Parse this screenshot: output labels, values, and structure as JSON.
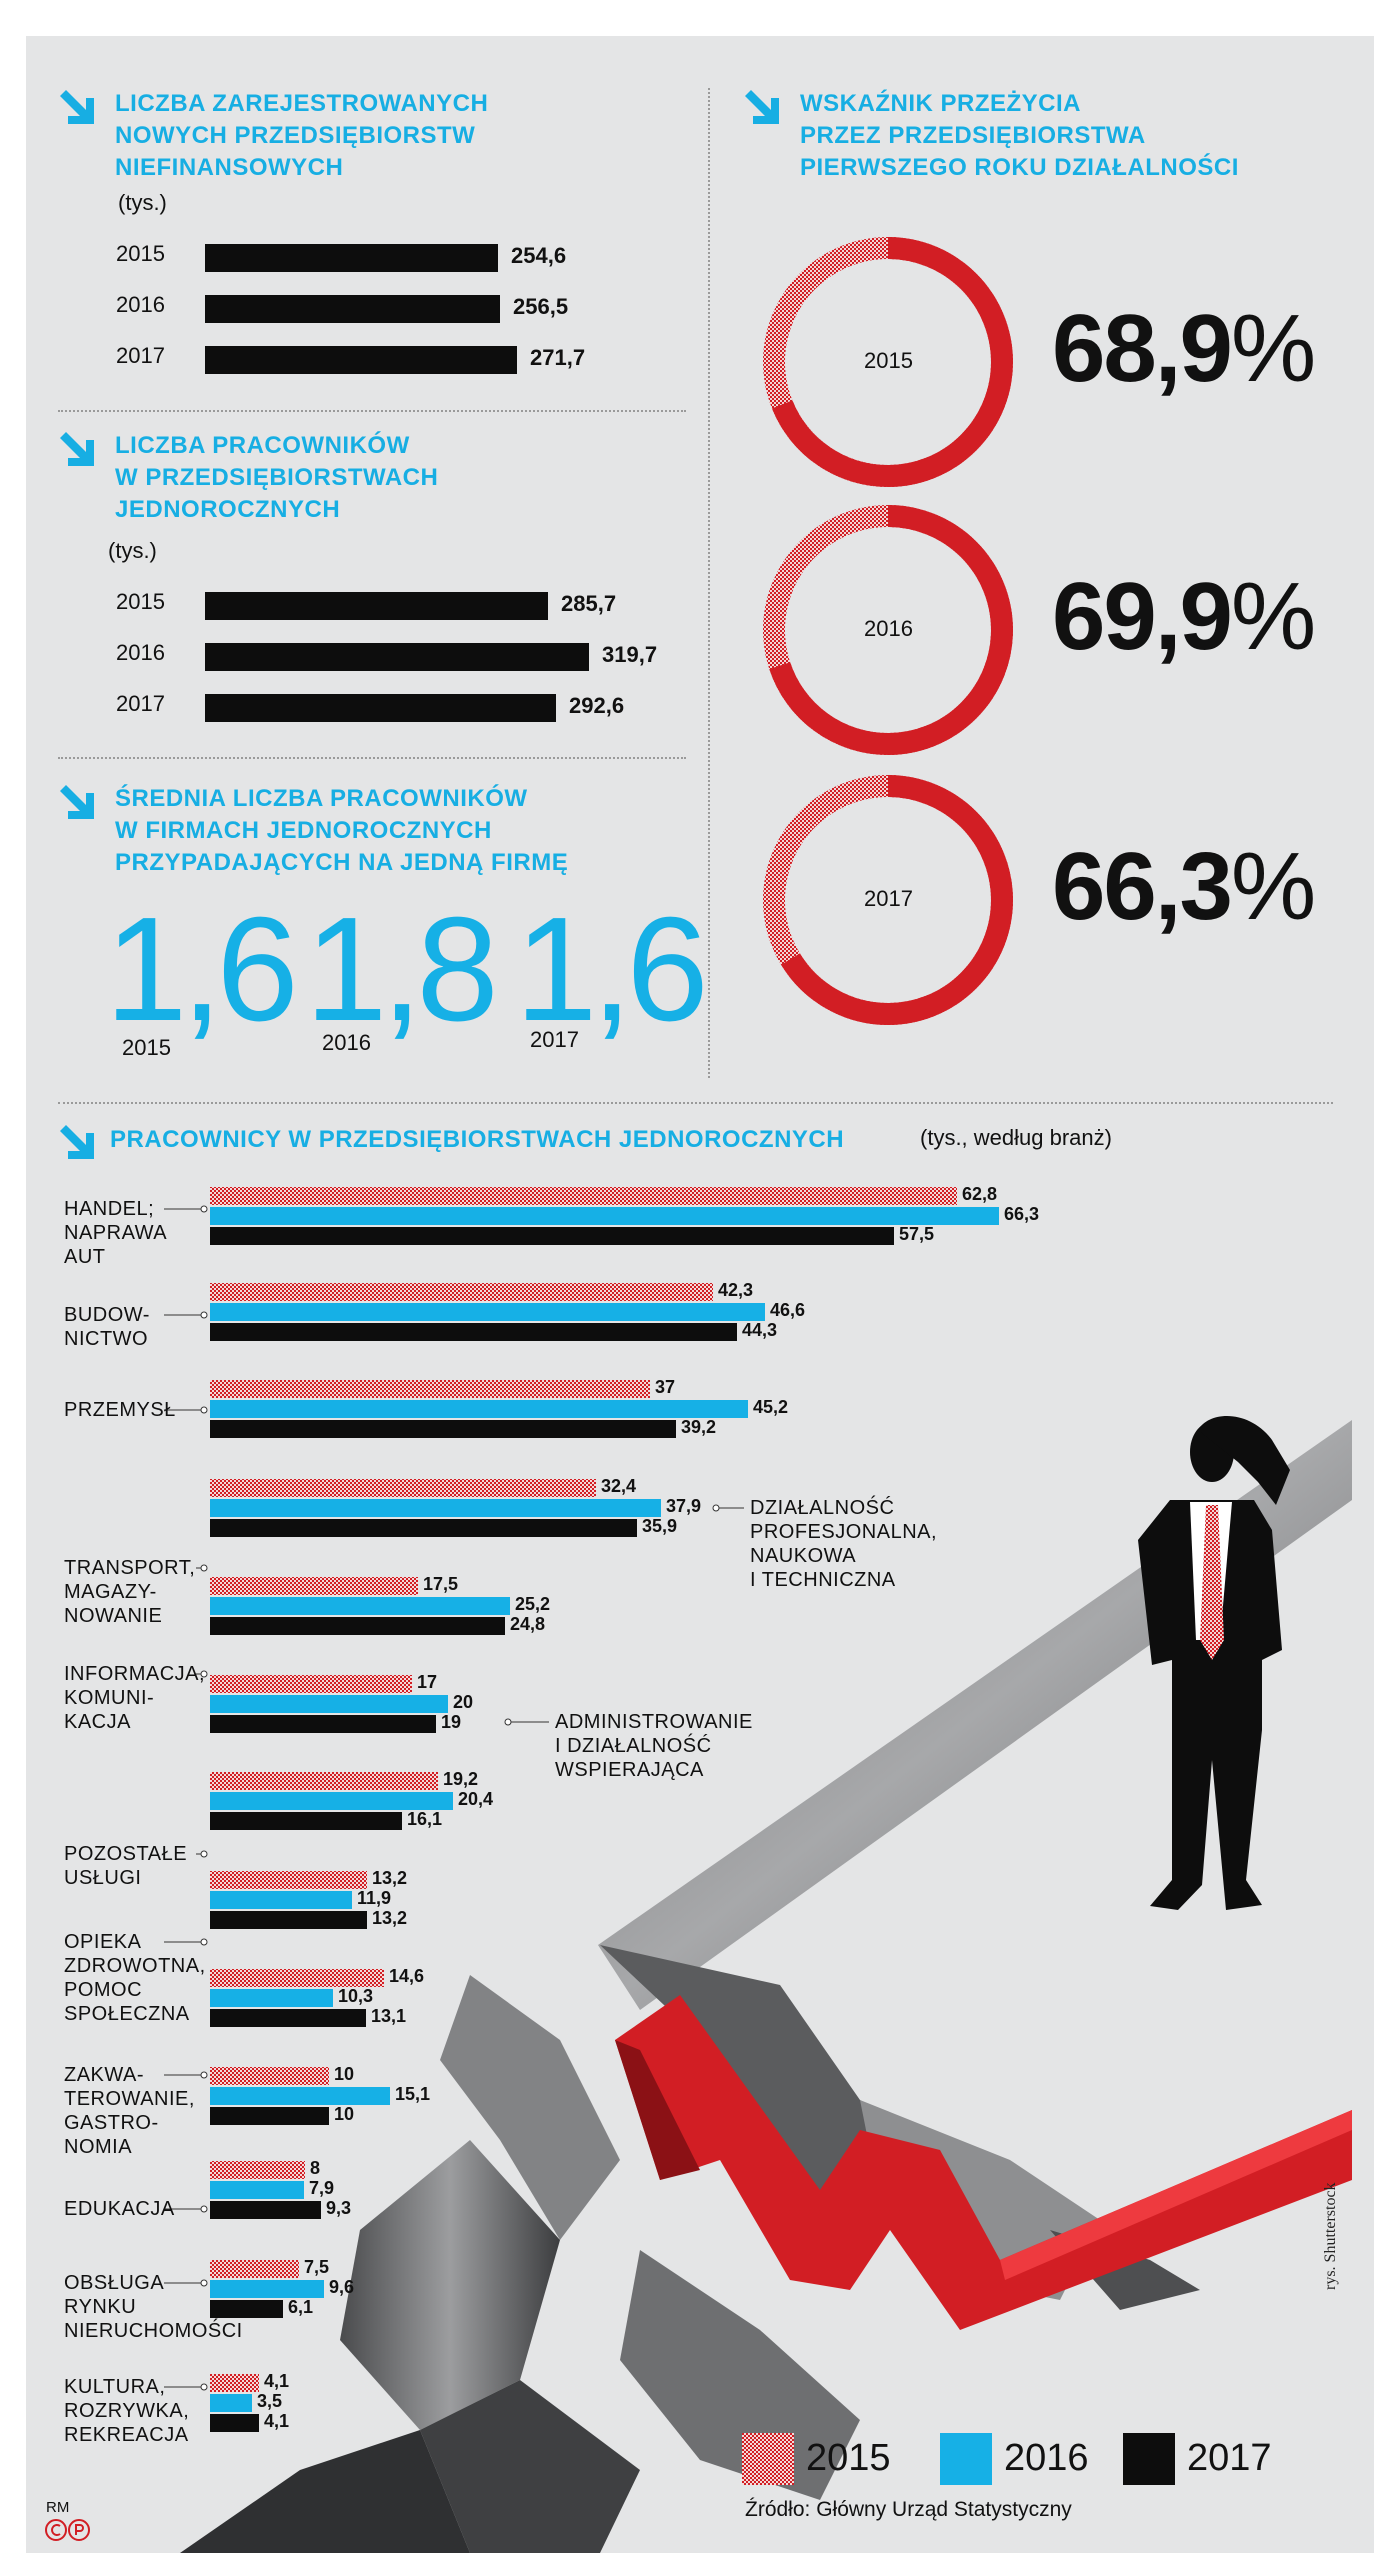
{
  "colors": {
    "cyan": "#16b0e6",
    "red": "#d21e24",
    "black": "#0d0d0d",
    "background": "#e4e5e6"
  },
  "icons": {
    "section_marker": "arrow-down-right-icon",
    "logo": "rp-logo"
  },
  "section1": {
    "title": [
      "LICZBA ZAREJESTROWANYCH",
      "NOWYCH  PRZEDSIĘBIORSTW",
      "NIEFINANSOWYCH"
    ],
    "unit": "(tys.)"
  },
  "section2": {
    "title": [
      "LICZBA PRACOWNIKÓW",
      "W PRZEDSIĘBIORSTWACH",
      "JEDNOROCZNYCH"
    ],
    "unit": "(tys.)"
  },
  "section3": {
    "title": [
      "ŚREDNIA LICZBA PRACOWNIKÓW",
      "W FIRMACH JEDNOROCZNYCH",
      "PRZYPADAJĄCYCH NA JEDNĄ FIRMĘ"
    ]
  },
  "section4": {
    "title": [
      "WSKAŹNIK PRZEŻYCIA",
      "PRZEZ PRZEDSIĘBIORSTWA",
      "PIERWSZEGO ROKU DZIAŁALNOŚCI"
    ]
  },
  "section5": {
    "title": "PRACOWNICY W PRZEDSIĘBIORSTWACH JEDNOROCZNYCH",
    "unit": "(tys., według branż)"
  },
  "legend": [
    {
      "label": "2015",
      "style": "red-dots"
    },
    {
      "label": "2016",
      "style": "cyan"
    },
    {
      "label": "2017",
      "style": "black"
    }
  ],
  "source": "Źródło: Główny Urząd Statystyczny",
  "credit": "rys. Shutterstock",
  "author": "RM",
  "chart_data": [
    {
      "type": "bar",
      "orientation": "horizontal",
      "categories": [
        "2015",
        "2016",
        "2017"
      ],
      "values": [
        254.6,
        256.5,
        271.7
      ],
      "labels": [
        "254,6",
        "256,5",
        "271,7"
      ]
    },
    {
      "type": "bar",
      "orientation": "horizontal",
      "categories": [
        "2015",
        "2016",
        "2017"
      ],
      "values": [
        285.7,
        319.7,
        292.6
      ],
      "labels": [
        "285,7",
        "319,7",
        "292,6"
      ]
    },
    {
      "type": "table",
      "categories": [
        "2015",
        "2016",
        "2017"
      ],
      "values": [
        1.6,
        1.8,
        1.6
      ],
      "labels": [
        "1,6",
        "1,8",
        "1,6"
      ]
    },
    {
      "type": "pie",
      "subtype": "donut",
      "items": [
        {
          "year": "2015",
          "value": 68.9,
          "label": "68,9"
        },
        {
          "year": "2016",
          "value": 69.9,
          "label": "69,9"
        },
        {
          "year": "2017",
          "value": 66.3,
          "label": "66,3"
        }
      ],
      "percent_sign": "%"
    },
    {
      "type": "bar",
      "orientation": "horizontal",
      "series_names": [
        "2015",
        "2016",
        "2017"
      ],
      "groups": [
        {
          "name": [
            "HANDEL;",
            "NAPRAWA",
            "AUT"
          ],
          "values": [
            62.8,
            66.3,
            57.5
          ],
          "labels": [
            "62,8",
            "66,3",
            "57,5"
          ]
        },
        {
          "name": [
            "BUDOW-",
            "NICTWO"
          ],
          "values": [
            42.3,
            46.6,
            44.3
          ],
          "labels": [
            "42,3",
            "46,6",
            "44,3"
          ]
        },
        {
          "name": [
            "PRZEMYSŁ"
          ],
          "values": [
            37,
            45.2,
            39.2
          ],
          "labels": [
            "37",
            "45,2",
            "39,2"
          ]
        },
        {
          "name": [
            "DZIAŁALNOŚĆ",
            "PROFESJONALNA,",
            "NAUKOWA",
            "I TECHNICZNA"
          ],
          "values": [
            32.4,
            37.9,
            35.9
          ],
          "labels": [
            "32,4",
            "37,9",
            "35,9"
          ]
        },
        {
          "name": [
            "TRANSPORT,",
            "MAGAZY-",
            "NOWANIE"
          ],
          "values": [
            17.5,
            25.2,
            24.8
          ],
          "labels": [
            "17,5",
            "25,2",
            "24,8"
          ]
        },
        {
          "name": [
            "INFORMACJA,",
            "KOMUNI-",
            "KACJA"
          ],
          "values": [
            17,
            20,
            19
          ],
          "labels": [
            "17",
            "20",
            "19"
          ]
        },
        {
          "name": [
            "ADMINISTROWANIE",
            "I DZIAŁALNOŚĆ",
            "WSPIERAJĄCA"
          ],
          "values": [
            19.2,
            20.4,
            16.1
          ],
          "labels": [
            "19,2",
            "20,4",
            "16,1"
          ]
        },
        {
          "name": [
            "POZOSTAŁE",
            "USŁUGI"
          ],
          "values": [
            13.2,
            11.9,
            13.2
          ],
          "labels": [
            "13,2",
            "11,9",
            "13,2"
          ]
        },
        {
          "name": [
            "OPIEKA",
            "ZDROWOTNA,",
            "POMOC",
            "SPOŁECZNA"
          ],
          "values": [
            14.6,
            10.3,
            13.1
          ],
          "labels": [
            "14,6",
            "10,3",
            "13,1"
          ]
        },
        {
          "name": [
            "ZAKWA-",
            "TEROWANIE,",
            "GASTRO-",
            "NOMIA"
          ],
          "values": [
            10,
            15.1,
            10
          ],
          "labels": [
            "10",
            "15,1",
            "10"
          ]
        },
        {
          "name": [
            "EDUKACJA"
          ],
          "values": [
            8,
            7.9,
            9.3
          ],
          "labels": [
            "8",
            "7,9",
            "9,3"
          ]
        },
        {
          "name": [
            "OBSŁUGA",
            "RYNKU",
            "NIERUCHOMOŚCI"
          ],
          "values": [
            7.5,
            9.6,
            6.1
          ],
          "labels": [
            "7,5",
            "9,6",
            "6,1"
          ]
        },
        {
          "name": [
            "KULTURA,",
            "ROZRYWKA,",
            "REKREACJA"
          ],
          "values": [
            4.1,
            3.5,
            4.1
          ],
          "labels": [
            "4,1",
            "3,5",
            "4,1"
          ]
        }
      ]
    }
  ]
}
